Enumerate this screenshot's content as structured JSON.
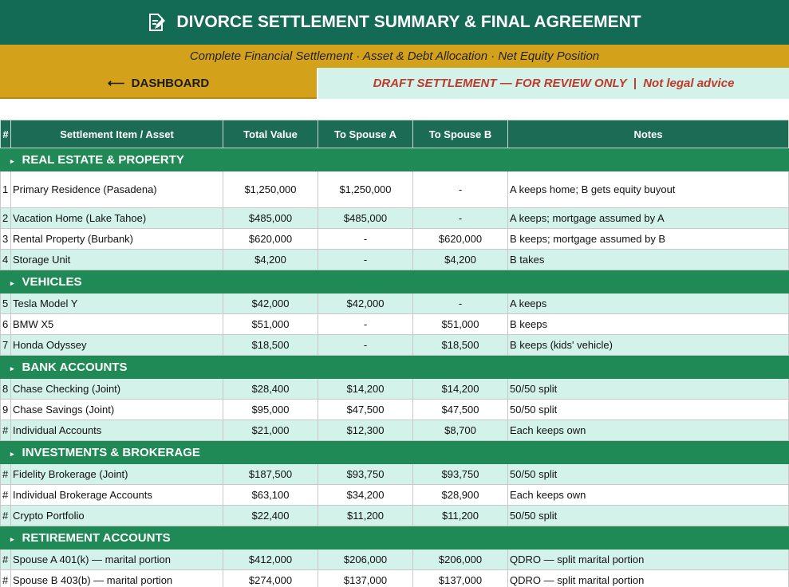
{
  "header": {
    "title": "DIVORCE SETTLEMENT SUMMARY & FINAL AGREEMENT",
    "subtitle": "Complete Financial Settlement · Asset & Debt Allocation · Net Equity Position",
    "nav_button": "⟵  DASHBOARD",
    "banner": "DRAFT SETTLEMENT — FOR REVIEW ONLY  |  Not legal advice"
  },
  "table": {
    "columns": [
      "#",
      "Settlement Item / Asset",
      "Total Value",
      "To Spouse A",
      "To Spouse B",
      "Notes"
    ],
    "sections": [
      {
        "title": "REAL ESTATE & PROPERTY",
        "rows": [
          [
            "1",
            "Primary Residence (Pasadena)",
            "$1,250,000",
            "$1,250,000",
            "-",
            "A keeps home; B gets equity buyout"
          ],
          [
            "2",
            "Vacation Home (Lake Tahoe)",
            "$485,000",
            "$485,000",
            "-",
            "A keeps; mortgage assumed by A"
          ],
          [
            "3",
            "Rental Property (Burbank)",
            "$620,000",
            "-",
            "$620,000",
            "B keeps; mortgage assumed by B"
          ],
          [
            "4",
            "Storage Unit",
            "$4,200",
            "-",
            "$4,200",
            "B takes"
          ]
        ]
      },
      {
        "title": "VEHICLES",
        "rows": [
          [
            "5",
            "Tesla Model Y",
            "$42,000",
            "$42,000",
            "-",
            "A keeps"
          ],
          [
            "6",
            "BMW X5",
            "$51,000",
            "-",
            "$51,000",
            "B keeps"
          ],
          [
            "7",
            "Honda Odyssey",
            "$18,500",
            "-",
            "$18,500",
            "B keeps (kids' vehicle)"
          ]
        ]
      },
      {
        "title": "BANK ACCOUNTS",
        "rows": [
          [
            "8",
            "Chase Checking (Joint)",
            "$28,400",
            "$14,200",
            "$14,200",
            "50/50 split"
          ],
          [
            "9",
            "Chase Savings (Joint)",
            "$95,000",
            "$47,500",
            "$47,500",
            "50/50 split"
          ],
          [
            "#",
            "Individual Accounts",
            "$21,000",
            "$12,300",
            "$8,700",
            "Each keeps own"
          ]
        ]
      },
      {
        "title": "INVESTMENTS & BROKERAGE",
        "rows": [
          [
            "#",
            "Fidelity Brokerage (Joint)",
            "$187,500",
            "$93,750",
            "$93,750",
            "50/50 split"
          ],
          [
            "#",
            "Individual Brokerage Accounts",
            "$63,100",
            "$34,200",
            "$28,900",
            "Each keeps own"
          ],
          [
            "#",
            "Crypto Portfolio",
            "$22,400",
            "$11,200",
            "$11,200",
            "50/50 split"
          ]
        ]
      },
      {
        "title": "RETIREMENT ACCOUNTS",
        "rows": [
          [
            "#",
            "Spouse A 401(k) — marital portion",
            "$412,000",
            "$206,000",
            "$206,000",
            "QDRO — split marital portion"
          ],
          [
            "#",
            "Spouse B 403(b) — marital portion",
            "$274,000",
            "$137,000",
            "$137,000",
            "QDRO — split marital portion"
          ]
        ]
      }
    ]
  }
}
